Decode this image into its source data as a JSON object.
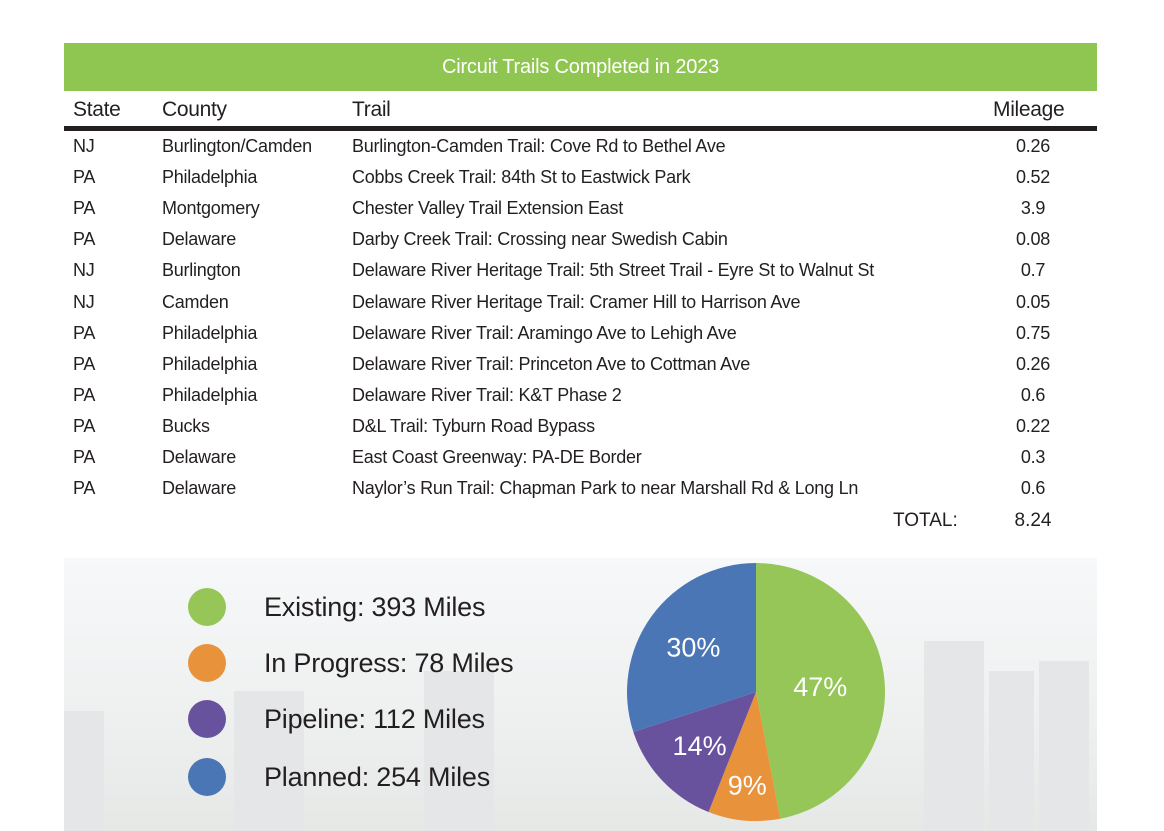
{
  "table": {
    "title": "Circuit Trails Completed in 2023",
    "headers": {
      "state": "State",
      "county": "County",
      "trail": "Trail",
      "mileage": "Mileage"
    },
    "rows": [
      {
        "state": "NJ",
        "county": "Burlington/Camden",
        "trail": "Burlington-Camden Trail: Cove Rd to Bethel Ave",
        "mileage": "0.26"
      },
      {
        "state": "PA",
        "county": "Philadelphia",
        "trail": "Cobbs Creek Trail: 84th St to Eastwick Park",
        "mileage": "0.52"
      },
      {
        "state": "PA",
        "county": "Montgomery",
        "trail": "Chester Valley Trail Extension East",
        "mileage": "3.9"
      },
      {
        "state": "PA",
        "county": "Delaware",
        "trail": "Darby Creek Trail: Crossing near Swedish Cabin",
        "mileage": "0.08"
      },
      {
        "state": "NJ",
        "county": "Burlington",
        "trail": "Delaware River Heritage Trail: 5th Street Trail - Eyre St to Walnut St",
        "mileage": "0.7"
      },
      {
        "state": "NJ",
        "county": "Camden",
        "trail": "Delaware River Heritage Trail: Cramer Hill to Harrison Ave",
        "mileage": "0.05"
      },
      {
        "state": "PA",
        "county": "Philadelphia",
        "trail": "Delaware River Trail: Aramingo Ave to Lehigh Ave",
        "mileage": "0.75"
      },
      {
        "state": "PA",
        "county": "Philadelphia",
        "trail": "Delaware River Trail: Princeton Ave to Cottman Ave",
        "mileage": "0.26"
      },
      {
        "state": "PA",
        "county": "Philadelphia",
        "trail": "Delaware River Trail: K&T Phase 2",
        "mileage": "0.6"
      },
      {
        "state": "PA",
        "county": "Bucks",
        "trail": "D&L Trail: Tyburn Road Bypass",
        "mileage": "0.22"
      },
      {
        "state": "PA",
        "county": "Delaware",
        "trail": "East Coast Greenway: PA-DE Border",
        "mileage": "0.3"
      },
      {
        "state": "PA",
        "county": "Delaware",
        "trail": "Naylor’s Run Trail: Chapman Park to near Marshall Rd & Long Ln",
        "mileage": "0.6"
      }
    ],
    "total_label": "TOTAL:",
    "total_value": "8.24"
  },
  "chart_data": {
    "type": "pie",
    "title": "",
    "slices": [
      {
        "name": "Existing",
        "legend": "Existing: 393 Miles",
        "miles": 393,
        "percent": 47,
        "label": "47%",
        "color": "#95c657"
      },
      {
        "name": "In Progress",
        "legend": "In Progress: 78 Miles",
        "miles": 78,
        "percent": 9,
        "label": "9%",
        "color": "#e8923c"
      },
      {
        "name": "Pipeline",
        "legend": "Pipeline: 112 Miles",
        "miles": 112,
        "percent": 14,
        "label": "14%",
        "color": "#68529e"
      },
      {
        "name": "Planned",
        "legend": "Planned: 254 Miles",
        "miles": 254,
        "percent": 30,
        "label": "30%",
        "color": "#4a76b5"
      }
    ],
    "legend_position": "left"
  }
}
